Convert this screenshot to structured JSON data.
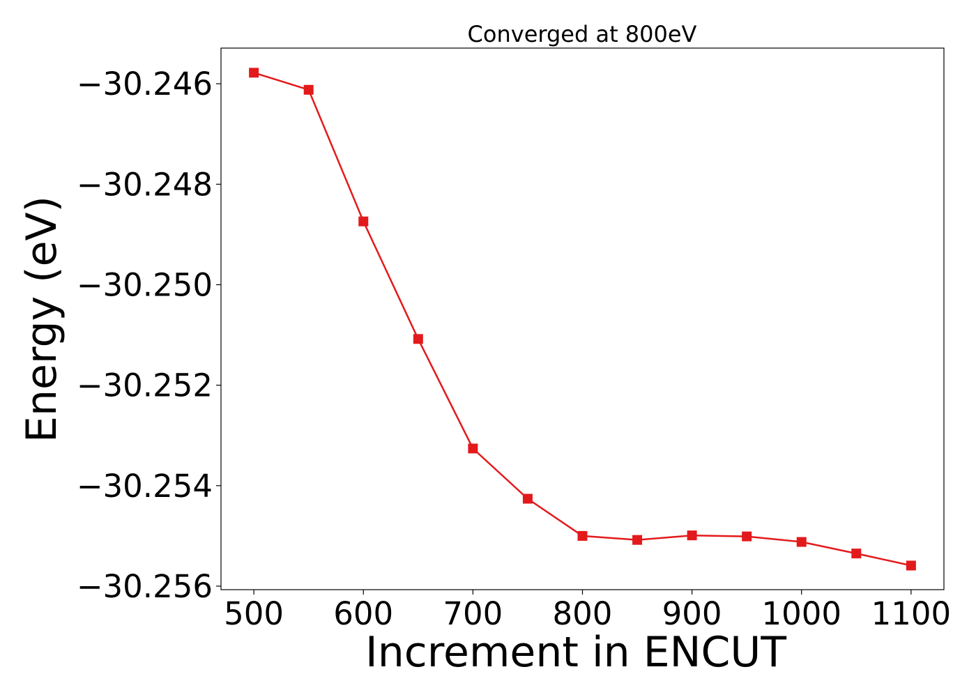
{
  "chart_data": {
    "type": "line",
    "title": "Converged at 800eV",
    "xlabel": "Increment in ENCUT",
    "ylabel": "Energy (eV)",
    "xlim": [
      470,
      1130
    ],
    "ylim": [
      -30.25607,
      -30.24529
    ],
    "x_ticks": [
      500,
      600,
      700,
      800,
      900,
      1000,
      1100
    ],
    "x_tick_labels": [
      "500",
      "600",
      "700",
      "800",
      "900",
      "1000",
      "1100"
    ],
    "y_ticks": [
      -30.246,
      -30.248,
      -30.25,
      -30.252,
      -30.254,
      -30.256
    ],
    "y_tick_labels": [
      "−30.246",
      "−30.248",
      "−30.250",
      "−30.252",
      "−30.254",
      "−30.256"
    ],
    "grid": false,
    "legend": "none",
    "marker": "square",
    "color": "#e31a1c",
    "series": [
      {
        "x": [
          500,
          550,
          600,
          650,
          700,
          750,
          800,
          850,
          900,
          950,
          1000,
          1050,
          1100
        ],
        "values": [
          -30.24578,
          -30.24612,
          -30.24874,
          -30.25108,
          -30.25326,
          -30.25426,
          -30.255,
          -30.25508,
          -30.25499,
          -30.25501,
          -30.25512,
          -30.25535,
          -30.25559
        ]
      }
    ]
  }
}
